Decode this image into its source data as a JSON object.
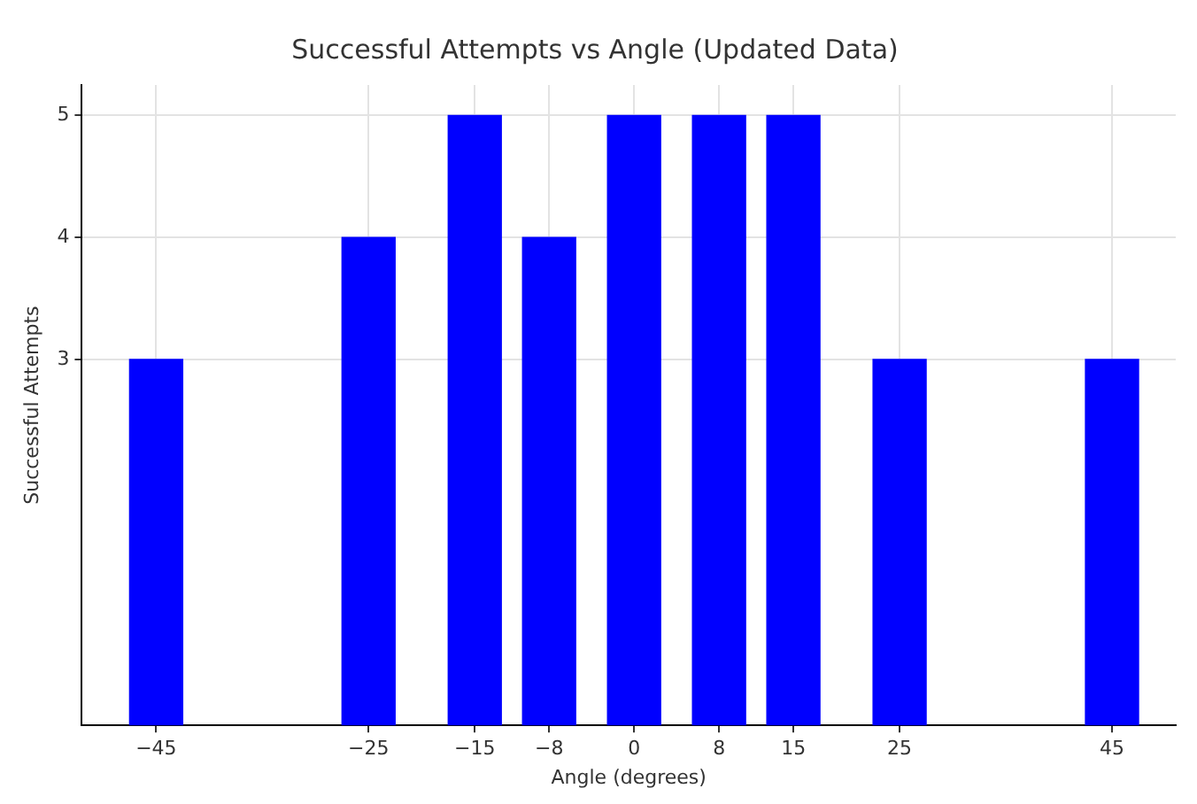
{
  "chart_data": {
    "type": "bar",
    "title": "Successful Attempts vs Angle (Updated Data)",
    "xlabel": "Angle (degrees)",
    "ylabel": "Successful Attempts",
    "x": [
      -45,
      -25,
      -15,
      -8,
      0,
      8,
      15,
      25,
      45
    ],
    "values": [
      3,
      4,
      5,
      4,
      5,
      5,
      5,
      3,
      3
    ],
    "color": "#0000ff",
    "xlim": [
      -52,
      51
    ],
    "xticks": [
      {
        "value": -45,
        "label": "−45"
      },
      {
        "value": -25,
        "label": "−25"
      },
      {
        "value": -15,
        "label": "−15"
      },
      {
        "value": -8,
        "label": "−8"
      },
      0,
      8,
      15,
      25,
      45
    ],
    "ylim": [
      0,
      5.25
    ],
    "yticks": [
      3,
      4,
      5
    ],
    "grid": true
  }
}
